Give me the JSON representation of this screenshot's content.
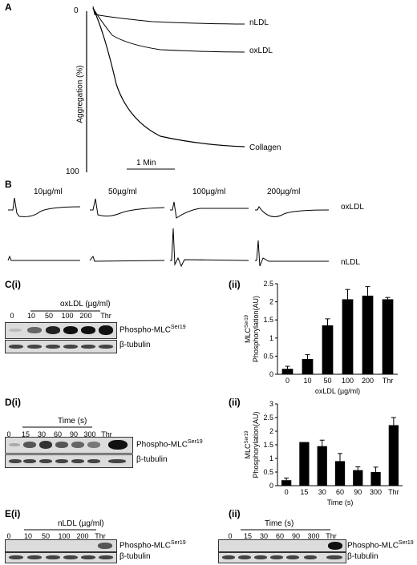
{
  "panelA": {
    "letter": "A",
    "ylabel": "Aggregation (%)",
    "y_top_tick": "0",
    "y_bottom_tick": "100",
    "scale_bar": "1 Min",
    "curves": [
      "nLDL",
      "oxLDL",
      "Collagen"
    ]
  },
  "panelB": {
    "letter": "B",
    "concentrations": [
      "10µg/ml",
      "50µg/ml",
      "100µg/ml",
      "200µg/ml"
    ],
    "rows": [
      "oxLDL",
      "nLDL"
    ]
  },
  "panelC": {
    "letter_i": "C(i)",
    "letter_ii": "(ii)",
    "blot_header": "oxLDL (µg/ml)",
    "lanes": [
      "0",
      "10",
      "50",
      "100",
      "200",
      "Thr"
    ],
    "phospho_label": "Phospho-MLC",
    "phospho_sup": "Ser19",
    "tubulin_label": "β-tubulin"
  },
  "panelD": {
    "letter_i": "D(i)",
    "letter_ii": "(ii)",
    "blot_header": "Time (s)",
    "lanes": [
      "0",
      "15",
      "30",
      "60",
      "90",
      "300",
      "Thr"
    ],
    "phospho_label": "Phospho-MLC",
    "phospho_sup": "Ser19",
    "tubulin_label": "β-tubulin"
  },
  "panelE": {
    "letter_i": "E(i)",
    "letter_ii": "(ii)",
    "blot_header_i": "nLDL (µg/ml)",
    "lanes_i": [
      "0",
      "10",
      "50",
      "100",
      "200",
      "Thr"
    ],
    "blot_header_ii": "Time (s)",
    "lanes_ii": [
      "0",
      "15",
      "30",
      "60",
      "90",
      "300",
      "Thr"
    ],
    "phospho_label": "Phospho-MLC",
    "phospho_sup": "Ser19",
    "tubulin_label": "β-tubulin"
  },
  "chart_data": [
    {
      "type": "bar",
      "panel": "C(ii)",
      "categories": [
        "0",
        "10",
        "50",
        "100",
        "200",
        "Thr"
      ],
      "values": [
        0.15,
        0.42,
        1.35,
        2.07,
        2.17,
        2.07
      ],
      "errors": [
        0.07,
        0.12,
        0.18,
        0.27,
        0.25,
        0.05
      ],
      "ylabel_line1": "MLC",
      "ylabel_sup": "Ser19",
      "ylabel_line2": "Phosphorylation(AU)",
      "xlabel": "oxLDL (µg/ml)",
      "ylim": [
        0,
        2.5
      ],
      "yticks": [
        "0",
        "0.5",
        "1",
        "1.5",
        "2",
        "2.5"
      ]
    },
    {
      "type": "bar",
      "panel": "D(ii)",
      "categories": [
        "0",
        "15",
        "30",
        "60",
        "90",
        "300",
        "Thr"
      ],
      "values": [
        0.2,
        1.6,
        1.45,
        0.9,
        0.57,
        0.5,
        2.22
      ],
      "errors": [
        0.08,
        0.0,
        0.22,
        0.28,
        0.12,
        0.18,
        0.28
      ],
      "ylabel_line1": "MLC",
      "ylabel_sup": "Ser19",
      "ylabel_line2": "Phosphorylation(AU)",
      "xlabel": "Time (s)",
      "ylim": [
        0,
        3
      ],
      "yticks": [
        "0",
        "0.5",
        "1",
        "1.5",
        "2",
        "2.5",
        "3"
      ]
    }
  ]
}
